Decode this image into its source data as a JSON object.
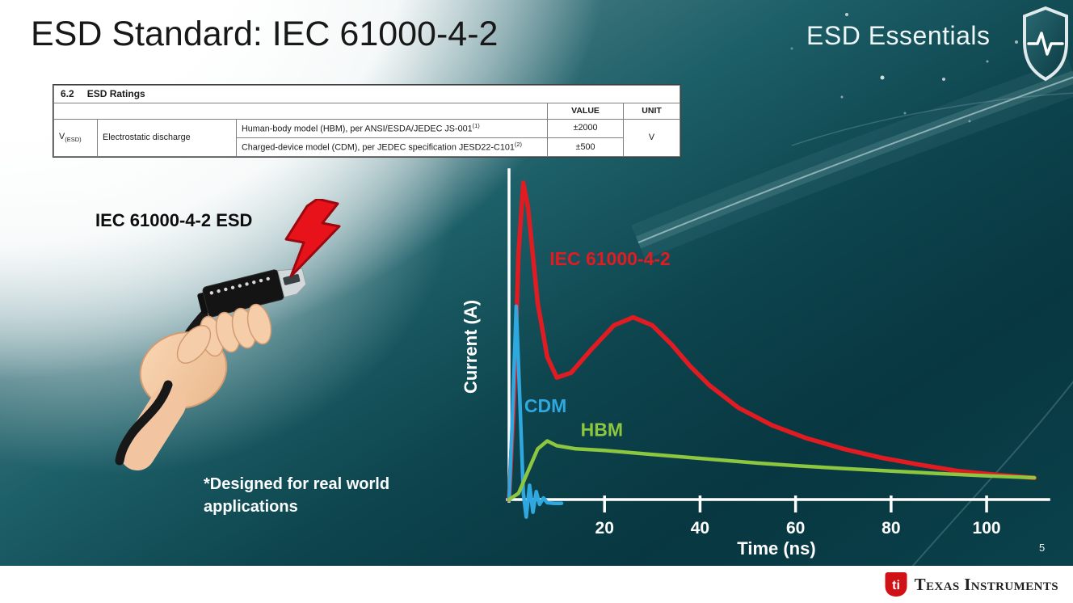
{
  "slide": {
    "title": "ESD Standard: IEC 61000-4-2",
    "brand": "ESD Essentials",
    "page_number": "5",
    "footer_brand": "Texas Instruments",
    "footer_monogram": "ti"
  },
  "ratings_table": {
    "section_number": "6.2",
    "section_title": "ESD Ratings",
    "value_header": "VALUE",
    "unit_header": "UNIT",
    "symbol_base": "V",
    "symbol_sub": "(ESD)",
    "parameter": "Electrostatic discharge",
    "rows": [
      {
        "description": "Human-body model (HBM), per ANSI/ESDA/JEDEC JS-001",
        "footnote": "(1)",
        "value": "±2000"
      },
      {
        "description": "Charged-device model (CDM), per JEDEC specification JESD22-C101",
        "footnote": "(2)",
        "value": "±500"
      }
    ],
    "unit_value": "V"
  },
  "illustration": {
    "label": "IEC 61000-4-2 ESD",
    "note": "*Designed for real world applications"
  },
  "chart_data": {
    "type": "line",
    "title": "",
    "xlabel": "Time (ns)",
    "ylabel": "Current (A)",
    "xlim": [
      0,
      112
    ],
    "ylim": [
      -0.08,
      1.08
    ],
    "x_ticks": [
      20,
      40,
      60,
      80,
      100
    ],
    "y_ticks": [],
    "grid": false,
    "axis_color": "#ffffff",
    "legend_position": "inline-labels",
    "series": [
      {
        "name": "IEC 61000-4-2",
        "color": "#e11b22",
        "stroke_width": 5.5,
        "label_pos": [
          8.5,
          0.74
        ],
        "points": [
          [
            0,
            0
          ],
          [
            1,
            0.3
          ],
          [
            2,
            0.78
          ],
          [
            3,
            1.0
          ],
          [
            4,
            0.92
          ],
          [
            6,
            0.62
          ],
          [
            8,
            0.45
          ],
          [
            10,
            0.385
          ],
          [
            13,
            0.4
          ],
          [
            17,
            0.47
          ],
          [
            22,
            0.55
          ],
          [
            26,
            0.575
          ],
          [
            30,
            0.55
          ],
          [
            34,
            0.49
          ],
          [
            38,
            0.42
          ],
          [
            42,
            0.36
          ],
          [
            48,
            0.29
          ],
          [
            55,
            0.235
          ],
          [
            62,
            0.195
          ],
          [
            70,
            0.16
          ],
          [
            78,
            0.132
          ],
          [
            86,
            0.11
          ],
          [
            94,
            0.09
          ],
          [
            102,
            0.078
          ],
          [
            110,
            0.068
          ]
        ]
      },
      {
        "name": "CDM",
        "color": "#2fa8e0",
        "stroke_width": 4.5,
        "label_pos": [
          3.2,
          0.275
        ],
        "points": [
          [
            0,
            0
          ],
          [
            0.7,
            0.25
          ],
          [
            1.5,
            0.61
          ],
          [
            2.3,
            0.3
          ],
          [
            3,
            0.02
          ],
          [
            3.6,
            -0.055
          ],
          [
            4.3,
            0.045
          ],
          [
            5,
            -0.04
          ],
          [
            5.7,
            0.025
          ],
          [
            6.4,
            -0.015
          ],
          [
            7.2,
            0.005
          ],
          [
            8,
            -0.01
          ],
          [
            9.5,
            -0.012
          ],
          [
            11,
            -0.012
          ]
        ]
      },
      {
        "name": "HBM",
        "color": "#8dc63f",
        "stroke_width": 4.5,
        "label_pos": [
          15,
          0.2
        ],
        "points": [
          [
            0,
            0
          ],
          [
            2,
            0.02
          ],
          [
            4,
            0.09
          ],
          [
            6,
            0.16
          ],
          [
            8,
            0.185
          ],
          [
            10,
            0.17
          ],
          [
            14,
            0.16
          ],
          [
            20,
            0.155
          ],
          [
            28,
            0.145
          ],
          [
            36,
            0.135
          ],
          [
            44,
            0.125
          ],
          [
            52,
            0.115
          ],
          [
            60,
            0.107
          ],
          [
            70,
            0.098
          ],
          [
            80,
            0.09
          ],
          [
            90,
            0.082
          ],
          [
            100,
            0.075
          ],
          [
            110,
            0.069
          ]
        ]
      }
    ]
  }
}
